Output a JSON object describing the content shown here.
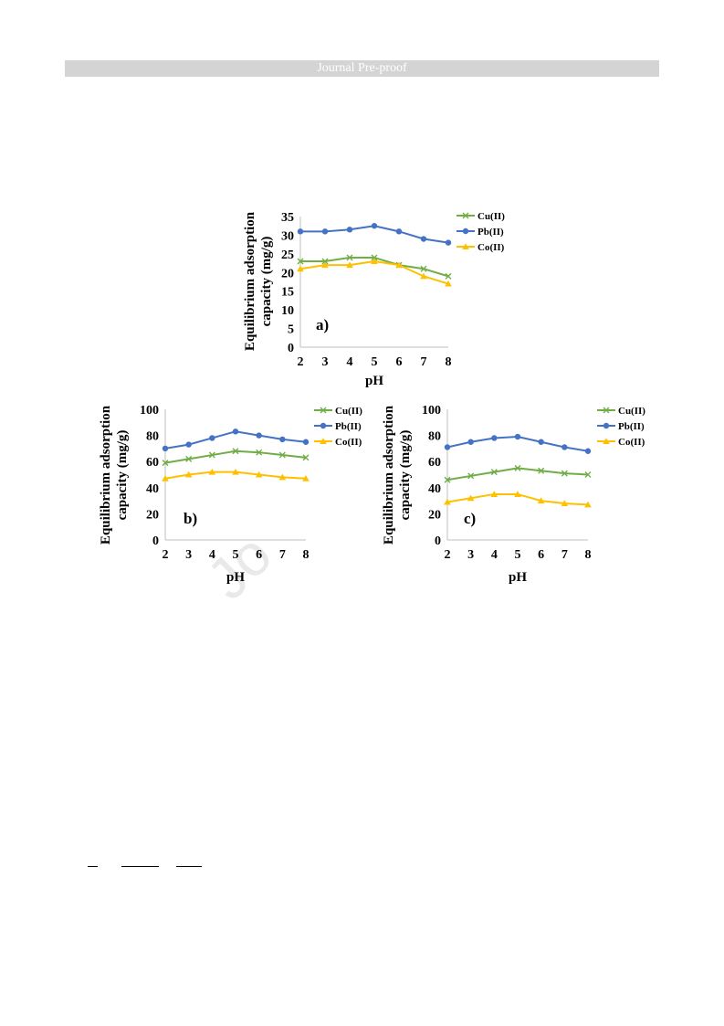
{
  "header": {
    "text": "Journal Pre-proof"
  },
  "watermark": {
    "text": "Jo"
  },
  "colors": {
    "cu": "#70ad47",
    "pb": "#4472c4",
    "co": "#ffc000",
    "header": "#d4d4d4"
  },
  "chart_data": [
    {
      "type": "line",
      "panel_label": "a)",
      "xlabel": "pH",
      "ylabel": [
        "Equilibrium adsorption",
        "capacity (mg/g)"
      ],
      "x": [
        2,
        3,
        4,
        5,
        6,
        7,
        8
      ],
      "ylim": [
        0,
        35
      ],
      "yticks": [
        0,
        5,
        10,
        15,
        20,
        25,
        30,
        35
      ],
      "grid": false,
      "legend": "right",
      "series": [
        {
          "name": "Cu(II)",
          "marker": "x",
          "color": "#70ad47",
          "values": [
            23,
            23,
            24,
            24,
            22,
            21,
            19
          ]
        },
        {
          "name": "Pb(II)",
          "marker": "circle",
          "color": "#4472c4",
          "values": [
            31,
            31,
            31.5,
            32.5,
            31,
            29,
            28
          ]
        },
        {
          "name": "Co(II)",
          "marker": "triangle",
          "color": "#ffc000",
          "values": [
            21,
            22,
            22,
            23,
            22,
            19,
            17
          ]
        }
      ]
    },
    {
      "type": "line",
      "panel_label": "b)",
      "xlabel": "pH",
      "ylabel": [
        "Equilibrium adsorption",
        "capacity (mg/g)"
      ],
      "x": [
        2,
        3,
        4,
        5,
        6,
        7,
        8
      ],
      "ylim": [
        0,
        100
      ],
      "yticks": [
        0,
        20,
        40,
        60,
        80,
        100
      ],
      "grid": false,
      "legend": "right",
      "series": [
        {
          "name": "Cu(II)",
          "marker": "x",
          "color": "#70ad47",
          "values": [
            59,
            62,
            65,
            68,
            67,
            65,
            63
          ]
        },
        {
          "name": "Pb(II)",
          "marker": "circle",
          "color": "#4472c4",
          "values": [
            70,
            73,
            78,
            83,
            80,
            77,
            75
          ]
        },
        {
          "name": "Co(II)",
          "marker": "triangle",
          "color": "#ffc000",
          "values": [
            47,
            50,
            52,
            52,
            50,
            48,
            47
          ]
        }
      ]
    },
    {
      "type": "line",
      "panel_label": "c)",
      "xlabel": "pH",
      "ylabel": [
        "Equilibrium adsorption",
        "capacity (mg/g)"
      ],
      "x": [
        2,
        3,
        4,
        5,
        6,
        7,
        8
      ],
      "ylim": [
        0,
        100
      ],
      "yticks": [
        0,
        20,
        40,
        60,
        80,
        100
      ],
      "grid": false,
      "legend": "right",
      "series": [
        {
          "name": "Cu(II)",
          "marker": "x",
          "color": "#70ad47",
          "values": [
            46,
            49,
            52,
            55,
            53,
            51,
            50
          ]
        },
        {
          "name": "Pb(II)",
          "marker": "circle",
          "color": "#4472c4",
          "values": [
            71,
            75,
            78,
            79,
            75,
            71,
            68
          ]
        },
        {
          "name": "Co(II)",
          "marker": "triangle",
          "color": "#ffc000",
          "values": [
            29,
            32,
            35,
            35,
            30,
            28,
            27
          ]
        }
      ]
    }
  ]
}
